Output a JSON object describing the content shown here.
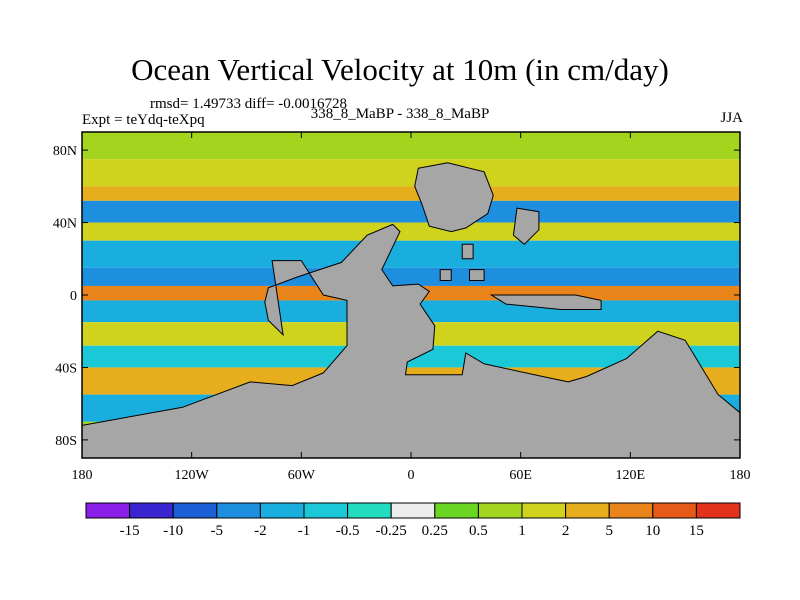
{
  "header": {
    "title": "Ocean Vertical Velocity at 10m (in cm/day)",
    "stats": "rmsd= 1.49733 diff= -0.0016728",
    "experiment": "Expt = teYdq-teXpq",
    "difference": "338_8_MaBP - 338_8_MaBP",
    "season": "JJA"
  },
  "colors": {
    "land": "#a6a6a6",
    "coastline": "#000000",
    "frame": "#000000"
  },
  "chart_data": {
    "type": "heatmap",
    "title": "Ocean Vertical Velocity at 10m (in cm/day)",
    "units": "cm/day",
    "xlim": [
      -180,
      180
    ],
    "ylim": [
      -90,
      90
    ],
    "x_ticks": [
      {
        "value": -180,
        "label": "180"
      },
      {
        "value": -120,
        "label": "120W"
      },
      {
        "value": -60,
        "label": "60W"
      },
      {
        "value": 0,
        "label": "0"
      },
      {
        "value": 60,
        "label": "60E"
      },
      {
        "value": 120,
        "label": "120E"
      },
      {
        "value": 180,
        "label": "180"
      }
    ],
    "y_ticks": [
      {
        "value": 80,
        "label": "80N"
      },
      {
        "value": 40,
        "label": "40N"
      },
      {
        "value": 0,
        "label": "0"
      },
      {
        "value": -40,
        "label": "40S"
      },
      {
        "value": -80,
        "label": "80S"
      }
    ],
    "colorbar": {
      "labels": [
        "-15",
        "-10",
        "-5",
        "-2",
        "-1",
        "-0.5",
        "-0.25",
        "0.25",
        "0.5",
        "1",
        "2",
        "5",
        "10",
        "15"
      ],
      "colors": [
        "#8a1fe8",
        "#3a24cf",
        "#1a5fd6",
        "#1e8ede",
        "#19aedd",
        "#1ac8d8",
        "#23dcc0",
        "#ededed",
        "#6ad622",
        "#a4d51e",
        "#cfd31d",
        "#e6ad1c",
        "#e8841a",
        "#e65a18",
        "#e3321a"
      ]
    },
    "bands": [
      {
        "lat_from": 90,
        "lat_to": 75,
        "level": "0.5"
      },
      {
        "lat_from": 75,
        "lat_to": 60,
        "level": "1"
      },
      {
        "lat_from": 60,
        "lat_to": 52,
        "level": "2"
      },
      {
        "lat_from": 52,
        "lat_to": 40,
        "level": "-2"
      },
      {
        "lat_from": 40,
        "lat_to": 30,
        "level": "1"
      },
      {
        "lat_from": 30,
        "lat_to": 15,
        "level": "-1"
      },
      {
        "lat_from": 15,
        "lat_to": 5,
        "level": "-2"
      },
      {
        "lat_from": 5,
        "lat_to": -3,
        "level": "5"
      },
      {
        "lat_from": -3,
        "lat_to": -15,
        "level": "-1"
      },
      {
        "lat_from": -15,
        "lat_to": -28,
        "level": "1"
      },
      {
        "lat_from": -28,
        "lat_to": -40,
        "level": "-0.5"
      },
      {
        "lat_from": -40,
        "lat_to": -55,
        "level": "2"
      },
      {
        "lat_from": -55,
        "lat_to": -70,
        "level": "-1"
      },
      {
        "lat_from": -70,
        "lat_to": -90,
        "level": "0.5"
      }
    ],
    "land_regions": [
      {
        "name": "south-america-antarctica",
        "points": [
          [
            -76,
            19
          ],
          [
            -60,
            19
          ],
          [
            -48,
            0
          ],
          [
            -35,
            -3
          ],
          [
            -35,
            -28
          ],
          [
            -48,
            -43
          ],
          [
            -65,
            -50
          ],
          [
            -88,
            -48
          ],
          [
            -125,
            -62
          ],
          [
            -180,
            -72
          ],
          [
            -180,
            -90
          ],
          [
            180,
            -90
          ],
          [
            180,
            -65
          ],
          [
            168,
            -55
          ],
          [
            150,
            -25
          ],
          [
            135,
            -20
          ],
          [
            118,
            -35
          ],
          [
            96,
            -45
          ],
          [
            86,
            -48
          ],
          [
            72,
            -45
          ],
          [
            40,
            -38
          ],
          [
            30,
            -32
          ],
          [
            28,
            -44
          ],
          [
            -3,
            -44
          ],
          [
            -2,
            -37
          ],
          [
            12,
            -30
          ],
          [
            13,
            -17
          ],
          [
            5,
            -5
          ],
          [
            10,
            2
          ],
          [
            4,
            6
          ],
          [
            -10,
            5
          ],
          [
            -16,
            14
          ],
          [
            -6,
            35
          ],
          [
            -10,
            39
          ],
          [
            -24,
            33
          ],
          [
            -38,
            18
          ],
          [
            -62,
            10
          ],
          [
            -78,
            4
          ],
          [
            -80,
            -4
          ],
          [
            -78,
            -14
          ],
          [
            -70,
            -22
          ]
        ]
      },
      {
        "name": "north-landmass",
        "points": [
          [
            4,
            70
          ],
          [
            20,
            73
          ],
          [
            40,
            68
          ],
          [
            45,
            55
          ],
          [
            42,
            45
          ],
          [
            30,
            37
          ],
          [
            22,
            35
          ],
          [
            10,
            38
          ],
          [
            6,
            50
          ],
          [
            2,
            60
          ]
        ]
      },
      {
        "name": "east-continent",
        "points": [
          [
            58,
            48
          ],
          [
            70,
            46
          ],
          [
            70,
            36
          ],
          [
            62,
            28
          ],
          [
            56,
            33
          ]
        ]
      },
      {
        "name": "equatorial-strip",
        "points": [
          [
            44,
            0
          ],
          [
            90,
            0
          ],
          [
            104,
            -3
          ],
          [
            104,
            -8
          ],
          [
            82,
            -8
          ],
          [
            52,
            -5
          ]
        ]
      },
      {
        "name": "island-a",
        "points": [
          [
            28,
            28
          ],
          [
            34,
            28
          ],
          [
            34,
            20
          ],
          [
            28,
            20
          ]
        ]
      },
      {
        "name": "island-b",
        "points": [
          [
            16,
            14
          ],
          [
            22,
            14
          ],
          [
            22,
            8
          ],
          [
            16,
            8
          ]
        ]
      },
      {
        "name": "island-c",
        "points": [
          [
            32,
            14
          ],
          [
            40,
            14
          ],
          [
            40,
            8
          ],
          [
            32,
            8
          ]
        ]
      }
    ]
  }
}
